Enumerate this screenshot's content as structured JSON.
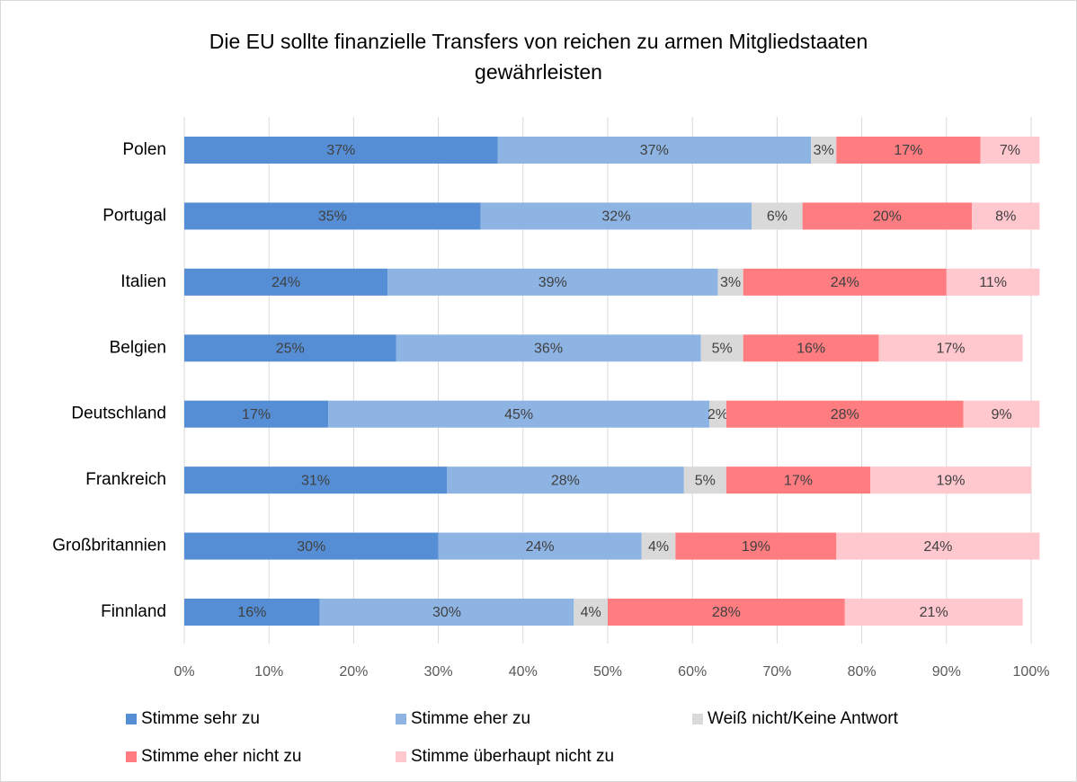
{
  "chart_data": {
    "type": "stacked-bar-horizontal",
    "title": "Die EU sollte finanzielle Transfers von reichen zu armen Mitgliedstaaten gewährleisten",
    "categories": [
      "Polen",
      "Portugal",
      "Italien",
      "Belgien",
      "Deutschland",
      "Frankreich",
      "Großbritannien",
      "Finnland"
    ],
    "series": [
      {
        "name": "Stimme sehr zu",
        "color": "#558ed5",
        "values": [
          37,
          35,
          24,
          25,
          17,
          31,
          30,
          16
        ],
        "value_labels": [
          "37%",
          "35%",
          "24%",
          "25%",
          "17%",
          "31%",
          "30%",
          "16%"
        ]
      },
      {
        "name": "Stimme eher zu",
        "color": "#8eb4e3",
        "values": [
          37,
          32,
          39,
          36,
          45,
          28,
          24,
          30
        ],
        "value_labels": [
          "37%",
          "32%",
          "39%",
          "36%",
          "45%",
          "28%",
          "24%",
          "30%"
        ]
      },
      {
        "name": "Weiß nicht/Keine Antwort",
        "color": "#d9d9d9",
        "values": [
          3,
          6,
          3,
          5,
          2,
          5,
          4,
          4
        ],
        "value_labels": [
          "3%",
          "6%",
          "3%",
          "5%",
          "2%",
          "5%",
          "4%",
          "4%"
        ]
      },
      {
        "name": "Stimme eher nicht zu",
        "color": "#ff7c80",
        "values": [
          17,
          20,
          24,
          16,
          28,
          17,
          19,
          28
        ],
        "value_labels": [
          "17%",
          "20%",
          "24%",
          "16%",
          "28%",
          "17%",
          "19%",
          "28%"
        ]
      },
      {
        "name": "Stimme überhaupt nicht zu",
        "color": "#ffc7ce",
        "values": [
          7,
          8,
          11,
          17,
          9,
          19,
          24,
          21
        ],
        "value_labels": [
          "7%",
          "8%",
          "11%",
          "17%",
          "9%",
          "19%",
          "24%",
          "21%"
        ]
      }
    ],
    "xlim": [
      0,
      100
    ],
    "xticks": [
      {
        "value": 0,
        "label": "0%"
      },
      {
        "value": 10,
        "label": "10%"
      },
      {
        "value": 20,
        "label": "20%"
      },
      {
        "value": 30,
        "label": "30%"
      },
      {
        "value": 40,
        "label": "40%"
      },
      {
        "value": 50,
        "label": "50%"
      },
      {
        "value": 60,
        "label": "60%"
      },
      {
        "value": 70,
        "label": "70%"
      },
      {
        "value": 80,
        "label": "80%"
      },
      {
        "value": 90,
        "label": "90%"
      },
      {
        "value": 100,
        "label": "100%"
      }
    ],
    "grid": true,
    "legend": "bottom"
  }
}
